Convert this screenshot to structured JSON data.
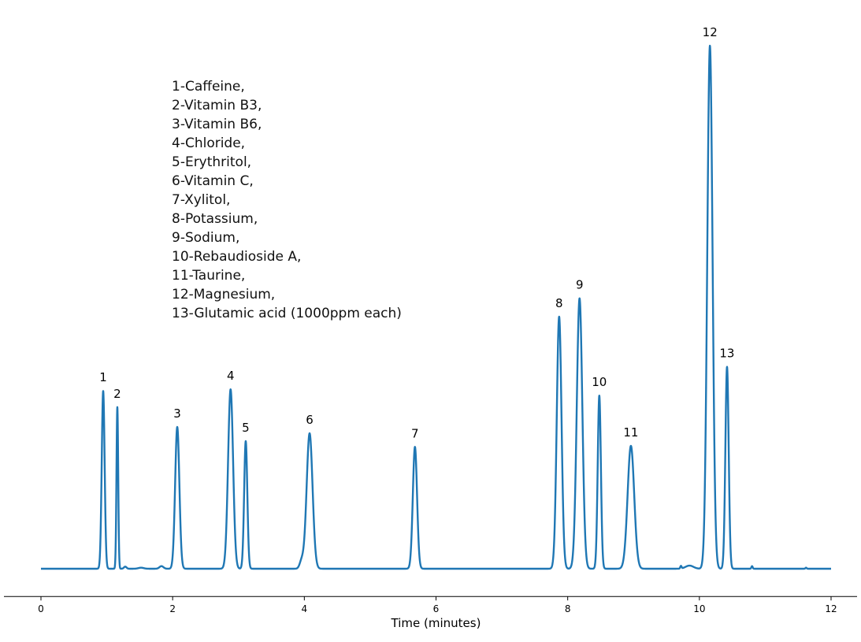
{
  "chart_data": {
    "type": "line",
    "title": "",
    "xlabel": "Time (minutes)",
    "ylabel": "",
    "xlim": [
      -0.55,
      12.4
    ],
    "ylim": [
      -5.3,
      105
    ],
    "xticks": [
      0,
      2,
      4,
      6,
      8,
      10,
      12
    ],
    "y_axis_visible": false,
    "grid": false,
    "line_color": "#1f77b4",
    "signal_units": "relative intensity (tallest peak = 100)",
    "x_start": 0,
    "x_end": 12,
    "peaks": [
      {
        "label": "1",
        "time": 0.945,
        "height": 34.0,
        "sigma": 0.022
      },
      {
        "label": "2",
        "time": 1.16,
        "height": 30.9,
        "sigma": 0.013
      },
      {
        "label": "3",
        "time": 2.07,
        "height": 27.1,
        "sigma": 0.032
      },
      {
        "label": "4",
        "time": 2.88,
        "height": 34.3,
        "sigma": 0.038
      },
      {
        "label": "5",
        "time": 3.11,
        "height": 24.4,
        "sigma": 0.024
      },
      {
        "label": "6",
        "time": 4.08,
        "height": 25.9,
        "sigma": 0.045
      },
      {
        "label": "7",
        "time": 5.68,
        "height": 23.3,
        "sigma": 0.032
      },
      {
        "label": "8",
        "time": 7.87,
        "height": 48.2,
        "sigma": 0.036
      },
      {
        "label": "9",
        "time": 8.18,
        "height": 51.7,
        "sigma": 0.042
      },
      {
        "label": "10",
        "time": 8.48,
        "height": 33.1,
        "sigma": 0.024
      },
      {
        "label": "11",
        "time": 8.96,
        "height": 23.5,
        "sigma": 0.05
      },
      {
        "label": "12",
        "time": 10.16,
        "height": 100,
        "sigma": 0.04
      },
      {
        "label": "13",
        "time": 10.42,
        "height": 38.6,
        "sigma": 0.025
      }
    ],
    "minor_features": [
      {
        "time": 1.28,
        "height": 0.4,
        "sigma": 0.02
      },
      {
        "time": 1.52,
        "height": 0.2,
        "sigma": 0.04
      },
      {
        "time": 1.83,
        "height": 0.5,
        "sigma": 0.03
      },
      {
        "time": 3.96,
        "height": 1.5,
        "sigma": 0.03
      },
      {
        "time": 9.72,
        "height": 0.5,
        "sigma": 0.01
      },
      {
        "time": 9.85,
        "height": 0.6,
        "sigma": 0.06
      },
      {
        "time": 10.8,
        "height": 0.5,
        "sigma": 0.01
      },
      {
        "time": 11.62,
        "height": 0.2,
        "sigma": 0.01
      }
    ],
    "annotations": [
      "1-Caffeine,",
      "2-Vitamin B3,",
      "3-Vitamin B6,",
      "4-Chloride,",
      "5-Erythritol,",
      "6-Vitamin C,",
      "7-Xylitol,",
      "8-Potassium,",
      "9-Sodium,",
      "10-Rebaudioside A,",
      "11-Taurine,",
      "12-Magnesium,",
      "13-Glutamic acid (1000ppm each)"
    ]
  }
}
